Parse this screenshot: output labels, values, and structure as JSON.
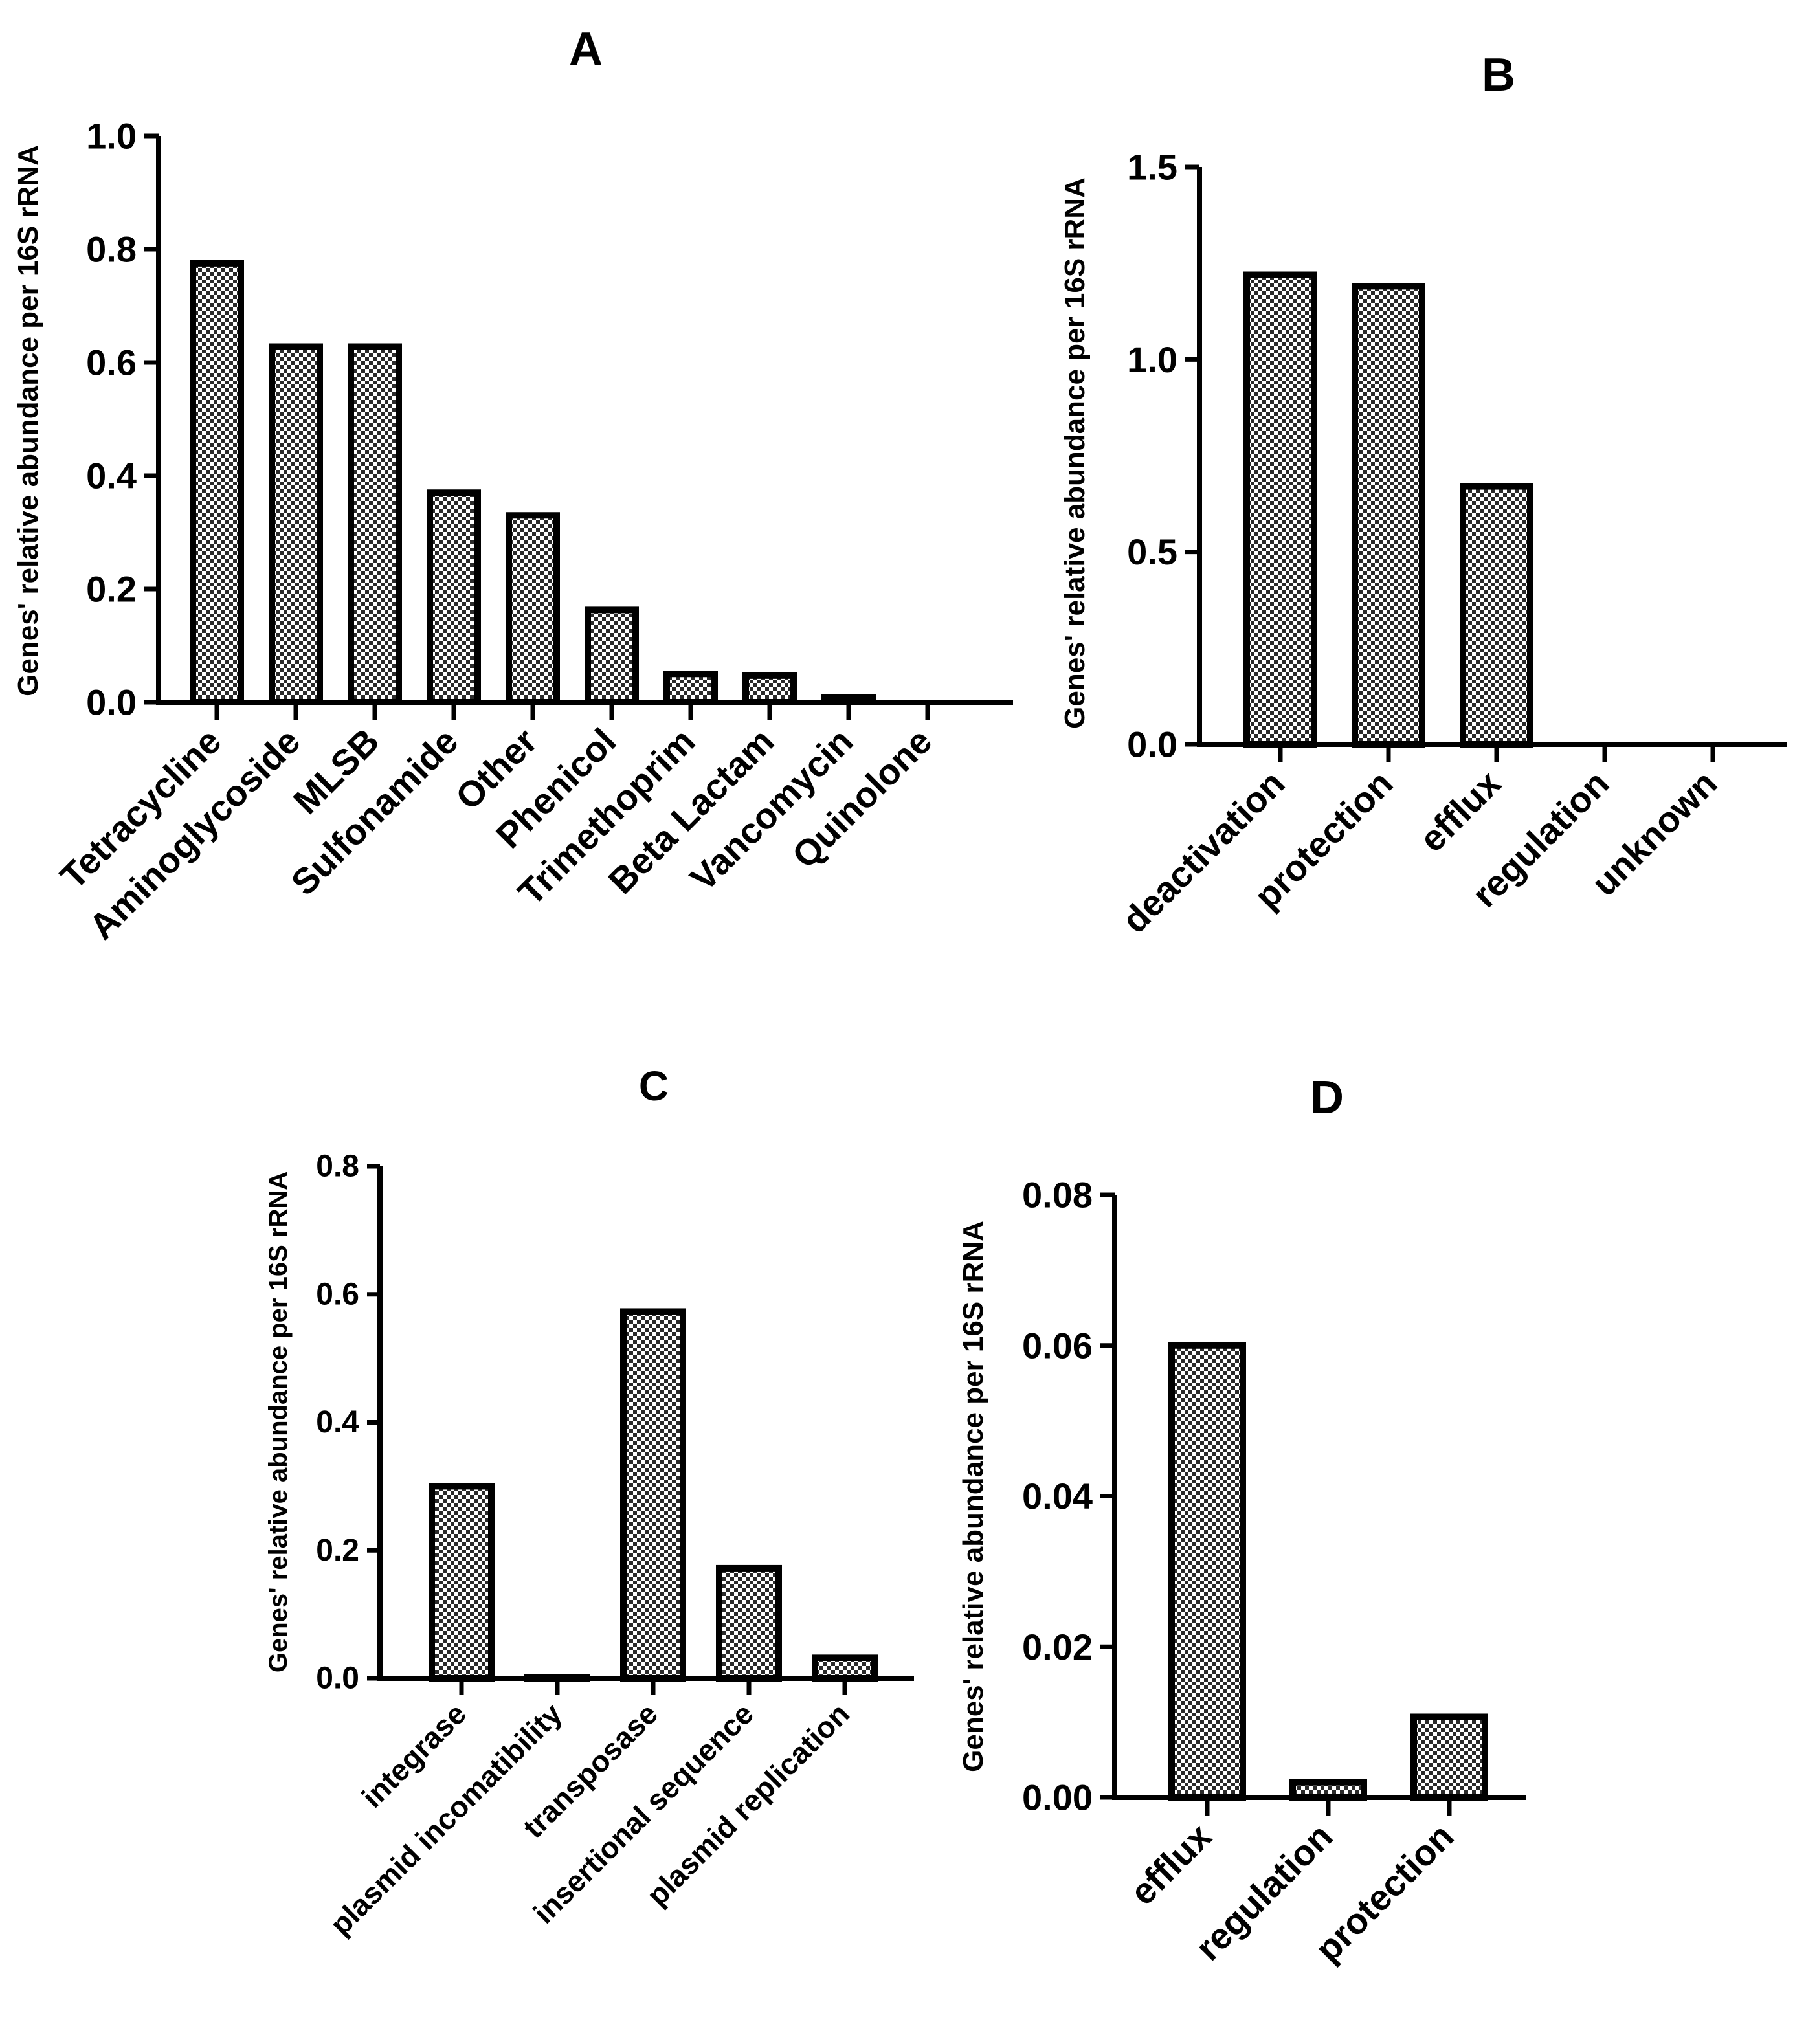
{
  "y_axis_label": "Genes' relative abundance per 16S rRNA",
  "chart_data": [
    {
      "id": "A",
      "type": "bar",
      "title": "A",
      "ylabel": "Genes' relative abundance per 16S rRNA",
      "ylim": [
        0,
        1.0
      ],
      "yticks": [
        0.0,
        0.2,
        0.4,
        0.6,
        0.8,
        1.0
      ],
      "ytick_labels": [
        "0.0",
        "0.2",
        "0.4",
        "0.6",
        "0.8",
        "1.0"
      ],
      "categories": [
        "Tetracycline",
        "Aminoglycoside",
        "MLSB",
        "Sulfonamide",
        "Other",
        "Phenicol",
        "Trimethoprim",
        "Beta Lactam",
        "Vancomycin",
        "Quinolone"
      ],
      "values": [
        0.775,
        0.628,
        0.628,
        0.37,
        0.33,
        0.163,
        0.05,
        0.047,
        0.008,
        0.0
      ]
    },
    {
      "id": "B",
      "type": "bar",
      "title": "B",
      "ylabel": "Genes' relative abundance per 16S rRNA",
      "ylim": [
        0,
        1.5
      ],
      "yticks": [
        0.0,
        0.5,
        1.0,
        1.5
      ],
      "ytick_labels": [
        "0.0",
        "0.5",
        "1.0",
        "1.5"
      ],
      "categories": [
        "deactivation",
        "protection",
        "efflux",
        "regulation",
        "unknown"
      ],
      "values": [
        1.22,
        1.19,
        0.67,
        0.0,
        0.0
      ]
    },
    {
      "id": "C",
      "type": "bar",
      "title": "C",
      "ylabel": "Genes' relative abundance per 16S rRNA",
      "ylim": [
        0,
        0.8
      ],
      "yticks": [
        0.0,
        0.2,
        0.4,
        0.6,
        0.8
      ],
      "ytick_labels": [
        "0.0",
        "0.2",
        "0.4",
        "0.6",
        "0.8"
      ],
      "categories": [
        "integrase",
        "plasmid incomatibility",
        "transposase",
        "insertional sequence",
        "plasmid replication"
      ],
      "values": [
        0.3,
        0.002,
        0.573,
        0.172,
        0.032
      ]
    },
    {
      "id": "D",
      "type": "bar",
      "title": "D",
      "ylabel": "Genes' relative abundance per 16S rRNA",
      "ylim": [
        0,
        0.08
      ],
      "yticks": [
        0.0,
        0.02,
        0.04,
        0.06,
        0.08
      ],
      "ytick_labels": [
        "0.00",
        "0.02",
        "0.04",
        "0.06",
        "0.08"
      ],
      "categories": [
        "efflux",
        "regulation",
        "protection"
      ],
      "values": [
        0.06,
        0.002,
        0.0107
      ]
    }
  ]
}
